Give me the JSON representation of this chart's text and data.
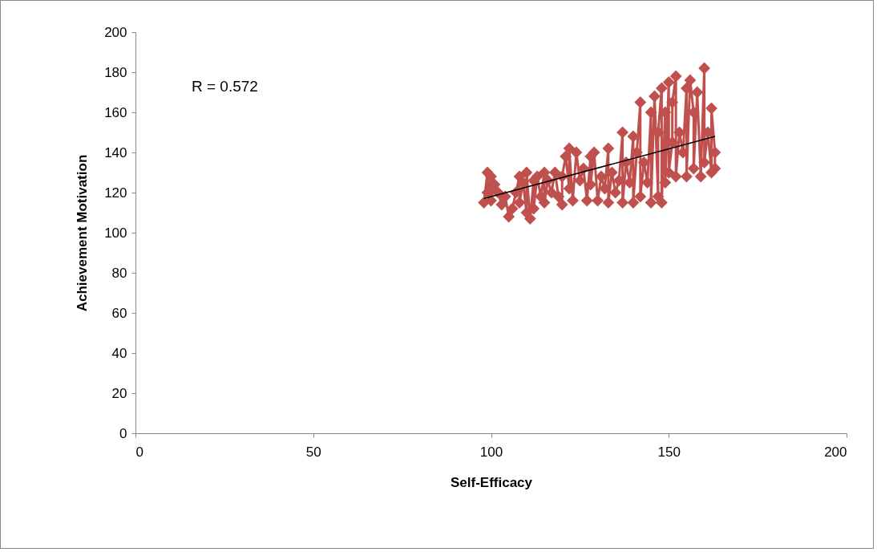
{
  "chart_data": {
    "type": "line",
    "xlabel": "Self-Efficacy",
    "ylabel": "Achievement Motivation",
    "xlim": [
      0,
      200
    ],
    "xticks": [
      0,
      50,
      100,
      150,
      200
    ],
    "ylim": [
      0,
      200
    ],
    "yticks": [
      0,
      20,
      40,
      60,
      80,
      100,
      120,
      140,
      160,
      180,
      200
    ],
    "grid": false,
    "marker": "diamond",
    "annotations": [
      "R =  0.572"
    ],
    "series": [
      {
        "color": "#c0504d",
        "x": [
          98,
          99,
          99,
          100,
          100,
          101,
          102,
          103,
          104,
          105,
          106,
          107,
          108,
          108,
          109,
          110,
          110,
          111,
          112,
          112,
          113,
          114,
          115,
          115,
          116,
          117,
          118,
          119,
          120,
          120,
          121,
          122,
          122,
          123,
          124,
          125,
          126,
          127,
          128,
          128,
          129,
          130,
          131,
          132,
          133,
          133,
          134,
          135,
          136,
          137,
          137,
          138,
          139,
          140,
          140,
          141,
          142,
          142,
          143,
          144,
          145,
          145,
          146,
          147,
          147,
          148,
          148,
          149,
          149,
          150,
          150,
          151,
          151,
          152,
          152,
          153,
          154,
          155,
          155,
          156,
          157,
          157,
          158,
          159,
          160,
          160,
          161,
          162,
          162,
          163,
          163
        ],
        "values": [
          115,
          130,
          120,
          128,
          116,
          124,
          120,
          114,
          118,
          108,
          112,
          120,
          128,
          115,
          125,
          110,
          130,
          107,
          126,
          112,
          128,
          118,
          130,
          115,
          126,
          120,
          130,
          118,
          114,
          128,
          138,
          122,
          142,
          116,
          140,
          126,
          132,
          116,
          138,
          124,
          140,
          116,
          128,
          122,
          142,
          115,
          130,
          120,
          126,
          150,
          115,
          135,
          125,
          148,
          115,
          140,
          165,
          118,
          135,
          125,
          160,
          115,
          168,
          118,
          150,
          172,
          115,
          160,
          125,
          175,
          130,
          145,
          165,
          178,
          128,
          150,
          140,
          172,
          128,
          176,
          160,
          132,
          170,
          128,
          182,
          135,
          150,
          130,
          162,
          140,
          132
        ]
      },
      {
        "type": "line",
        "color": "#000000",
        "marker": "none",
        "x": [
          98,
          163
        ],
        "values": [
          117,
          148
        ]
      }
    ]
  }
}
